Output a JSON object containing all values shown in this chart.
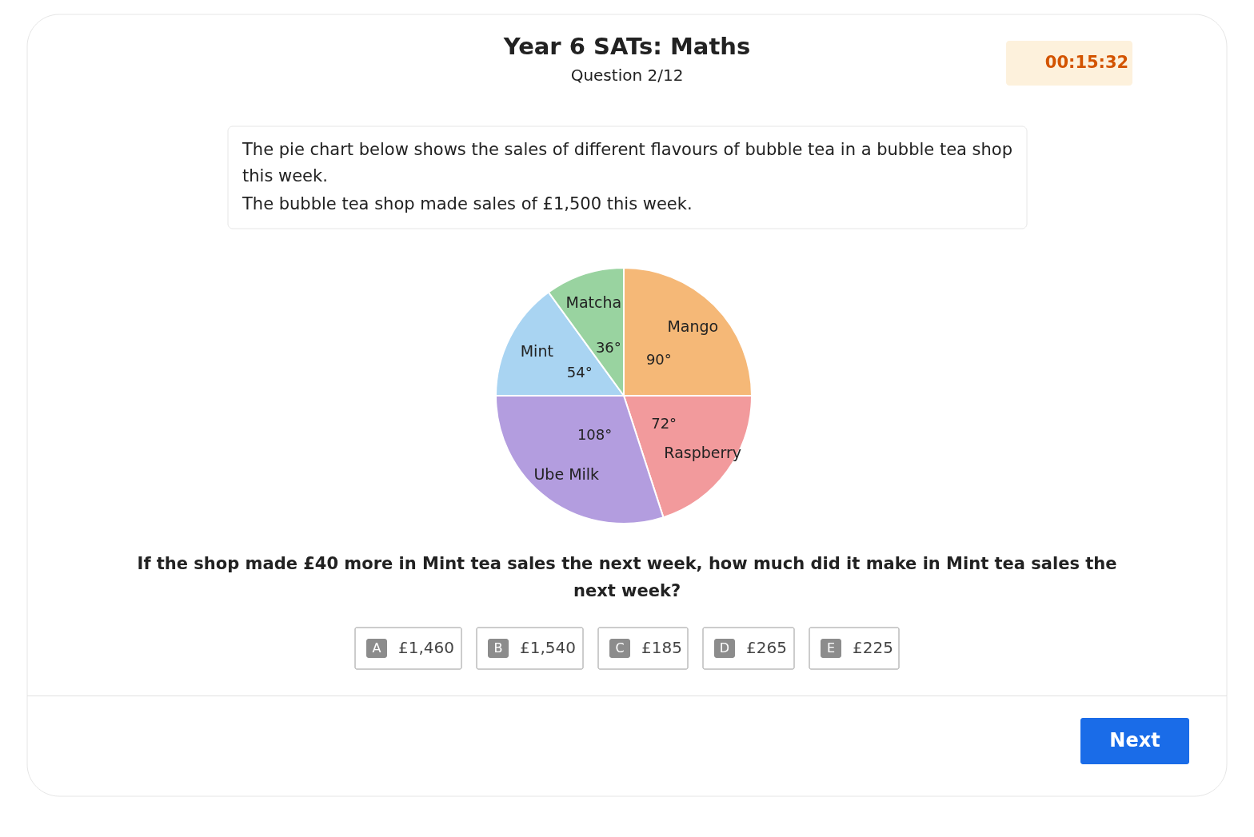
{
  "chart_data": {
    "type": "pie",
    "title": "Year 6 SATs: Maths",
    "subtitle": "Question 2/12",
    "categories": [
      "Mango",
      "Raspberry",
      "Ube Milk",
      "Mint",
      "Matcha"
    ],
    "values": [
      90,
      72,
      108,
      54,
      36
    ],
    "value_labels": [
      "90°",
      "72°",
      "108°",
      "54°",
      "36°"
    ],
    "colors": [
      "#f5b877",
      "#f29a9c",
      "#b39ddf",
      "#a9d4f2",
      "#99d3a0"
    ],
    "annotations": [
      "00:15:32",
      "The pie chart below shows the sales of different flavours of bubble tea in a bubble tea shop",
      "this week.",
      "The bubble tea shop made sales of £1,500 this week.",
      "If the shop made £40 more in Mint tea sales the next week, how much did it make in Mint tea sales the",
      "next week?",
      "A",
      "£1,460",
      "B",
      "£1,540",
      "C",
      "£185",
      "D",
      "£265",
      "E",
      "£225",
      "Next"
    ]
  }
}
